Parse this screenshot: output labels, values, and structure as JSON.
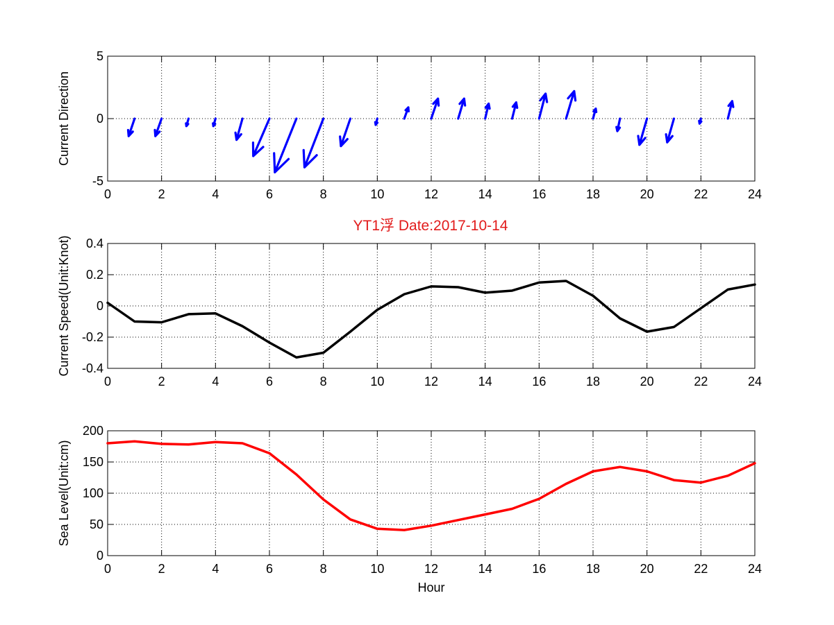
{
  "title": {
    "text": "YT1浮    Date:2017-10-14",
    "color": "#e21b1b"
  },
  "chart_data": [
    {
      "type": "quiver",
      "panel": "top",
      "ylabel": "Current Direction",
      "xlabel": "",
      "xlim": [
        0,
        24
      ],
      "ylim": [
        -5,
        5
      ],
      "xticks": [
        0,
        2,
        4,
        6,
        8,
        10,
        12,
        14,
        16,
        18,
        20,
        22,
        24
      ],
      "yticks": [
        -5,
        0,
        5
      ],
      "grid": true,
      "color": "#0000ff",
      "x": [
        1,
        2,
        3,
        4,
        5,
        6,
        7,
        8,
        9,
        10,
        11,
        12,
        13,
        14,
        15,
        16,
        17,
        18,
        19,
        20,
        21,
        22,
        23
      ],
      "u": [
        -0.22,
        -0.23,
        -0.08,
        -0.08,
        -0.22,
        -0.6,
        -0.8,
        -0.7,
        -0.35,
        -0.06,
        0.15,
        0.25,
        0.22,
        0.13,
        0.15,
        0.24,
        0.3,
        0.1,
        -0.1,
        -0.28,
        -0.25,
        -0.05,
        0.16
      ],
      "v": [
        -1.4,
        -1.4,
        -0.6,
        -0.6,
        -1.7,
        -3.0,
        -4.3,
        -3.9,
        -2.2,
        -0.5,
        0.9,
        1.6,
        1.6,
        1.2,
        1.3,
        2.0,
        2.2,
        0.8,
        -1.0,
        -2.1,
        -1.9,
        -0.4,
        1.4
      ]
    },
    {
      "type": "line",
      "panel": "middle",
      "ylabel": "Current Speed(Unit:Knot)",
      "xlabel": "",
      "xlim": [
        0,
        24
      ],
      "ylim": [
        -0.4,
        0.4
      ],
      "xticks": [
        0,
        2,
        4,
        6,
        8,
        10,
        12,
        14,
        16,
        18,
        20,
        22,
        24
      ],
      "yticks": [
        -0.4,
        -0.2,
        0,
        0.2,
        0.4
      ],
      "grid": true,
      "color": "#000000",
      "x": [
        0,
        1,
        2,
        3,
        4,
        5,
        6,
        7,
        8,
        9,
        10,
        11,
        12,
        13,
        14,
        15,
        16,
        17,
        18,
        19,
        20,
        21,
        22,
        23,
        24
      ],
      "y": [
        0.02,
        -0.1,
        -0.105,
        -0.053,
        -0.048,
        -0.13,
        -0.235,
        -0.33,
        -0.3,
        -0.165,
        -0.025,
        0.075,
        0.125,
        0.12,
        0.085,
        0.098,
        0.15,
        0.16,
        0.065,
        -0.08,
        -0.165,
        -0.135,
        -0.015,
        0.105,
        0.137
      ]
    },
    {
      "type": "line",
      "panel": "bottom",
      "ylabel": "Sea Level(Unit:cm)",
      "xlabel": "Hour",
      "xlim": [
        0,
        24
      ],
      "ylim": [
        0,
        200
      ],
      "xticks": [
        0,
        2,
        4,
        6,
        8,
        10,
        12,
        14,
        16,
        18,
        20,
        22,
        24
      ],
      "yticks": [
        0,
        50,
        100,
        150,
        200
      ],
      "grid": true,
      "color": "#ff0000",
      "x": [
        0,
        1,
        2,
        3,
        4,
        5,
        6,
        7,
        8,
        9,
        10,
        11,
        12,
        13,
        14,
        15,
        16,
        17,
        18,
        19,
        20,
        21,
        22,
        23,
        24
      ],
      "y": [
        180,
        183,
        179,
        178,
        182,
        180,
        164,
        130,
        90,
        58,
        43,
        41,
        48,
        57,
        66,
        75,
        91,
        115,
        135,
        142,
        135,
        121,
        117,
        128,
        148
      ]
    }
  ]
}
